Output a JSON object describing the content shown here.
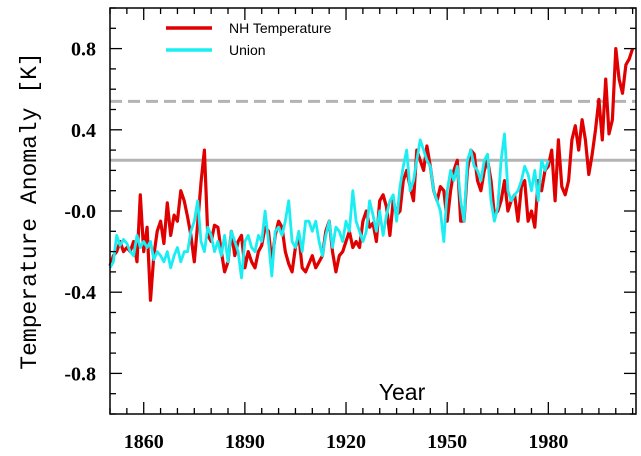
{
  "chart_data": {
    "type": "line",
    "xlabel": "Year",
    "ylabel": "Temperature Anomaly [K]",
    "xlim": [
      1850,
      2006
    ],
    "ylim": [
      -1.0,
      1.0
    ],
    "x_ticks": [
      1860,
      1890,
      1920,
      1950,
      1980
    ],
    "x_tick_labels": [
      "1860",
      "1890",
      "1920",
      "1950",
      "1980"
    ],
    "y_ticks": [
      0.8,
      0.4,
      0.0,
      -0.4,
      -0.8
    ],
    "y_tick_labels": [
      "0.8",
      "0.4",
      "-0.0",
      "-0.4",
      "-0.8"
    ],
    "grid": false,
    "legend_position": "top-left",
    "reference_lines": [
      {
        "y": 0.54,
        "style": "dashed",
        "color": "#b4b4b4"
      },
      {
        "y": 0.25,
        "style": "solid",
        "color": "#b4b4b4"
      }
    ],
    "series": [
      {
        "name": "NH Temperature",
        "color": "#e00000",
        "x": [
          1850,
          1851,
          1852,
          1853,
          1854,
          1855,
          1856,
          1857,
          1858,
          1859,
          1860,
          1861,
          1862,
          1863,
          1864,
          1865,
          1866,
          1867,
          1868,
          1869,
          1870,
          1871,
          1872,
          1873,
          1874,
          1875,
          1876,
          1877,
          1878,
          1879,
          1880,
          1881,
          1882,
          1883,
          1884,
          1885,
          1886,
          1887,
          1888,
          1889,
          1890,
          1891,
          1892,
          1893,
          1894,
          1895,
          1896,
          1897,
          1898,
          1899,
          1900,
          1901,
          1902,
          1903,
          1904,
          1905,
          1906,
          1907,
          1908,
          1909,
          1910,
          1911,
          1912,
          1913,
          1914,
          1915,
          1916,
          1917,
          1918,
          1919,
          1920,
          1921,
          1922,
          1923,
          1924,
          1925,
          1926,
          1927,
          1928,
          1929,
          1930,
          1931,
          1932,
          1933,
          1934,
          1935,
          1936,
          1937,
          1938,
          1939,
          1940,
          1941,
          1942,
          1943,
          1944,
          1945,
          1946,
          1947,
          1948,
          1949,
          1950,
          1951,
          1952,
          1953,
          1954,
          1955,
          1956,
          1957,
          1958,
          1959,
          1960,
          1961,
          1962,
          1963,
          1964,
          1965,
          1966,
          1967,
          1968,
          1969,
          1970,
          1971,
          1972,
          1973,
          1974,
          1975,
          1976,
          1977,
          1978,
          1979,
          1980,
          1981,
          1982,
          1983,
          1984,
          1985,
          1986,
          1987,
          1988,
          1989,
          1990,
          1991,
          1992,
          1993,
          1994,
          1995,
          1996,
          1997,
          1998,
          1999,
          2000,
          2001,
          2002,
          2003,
          2004,
          2005
        ],
        "values": [
          -0.27,
          -0.22,
          -0.2,
          -0.15,
          -0.2,
          -0.18,
          -0.2,
          -0.15,
          -0.25,
          0.08,
          -0.2,
          -0.08,
          -0.44,
          -0.22,
          -0.1,
          -0.05,
          -0.16,
          0.04,
          -0.12,
          -0.02,
          -0.05,
          0.1,
          0.05,
          -0.03,
          -0.12,
          -0.25,
          -0.06,
          0.14,
          0.3,
          -0.12,
          -0.15,
          -0.07,
          -0.08,
          -0.2,
          -0.3,
          -0.25,
          -0.1,
          -0.22,
          -0.15,
          -0.12,
          -0.28,
          -0.2,
          -0.25,
          -0.28,
          -0.2,
          -0.17,
          -0.08,
          -0.1,
          -0.25,
          -0.12,
          -0.05,
          -0.08,
          -0.2,
          -0.26,
          -0.3,
          -0.18,
          -0.12,
          -0.28,
          -0.3,
          -0.26,
          -0.22,
          -0.28,
          -0.25,
          -0.22,
          -0.1,
          -0.05,
          -0.2,
          -0.3,
          -0.22,
          -0.2,
          -0.15,
          -0.1,
          -0.18,
          -0.15,
          -0.18,
          -0.05,
          0.0,
          -0.08,
          -0.06,
          -0.15,
          0.05,
          0.08,
          0.02,
          -0.12,
          0.05,
          -0.02,
          0.0,
          0.15,
          0.2,
          0.12,
          0.05,
          0.3,
          0.25,
          0.2,
          0.32,
          0.22,
          0.1,
          0.05,
          0.12,
          0.1,
          -0.05,
          0.1,
          0.2,
          0.25,
          -0.05,
          -0.05,
          0.2,
          0.3,
          0.28,
          0.15,
          0.1,
          0.2,
          0.25,
          0.15,
          -0.02,
          0.0,
          0.05,
          0.15,
          0.0,
          0.05,
          0.08,
          -0.05,
          0.12,
          0.15,
          -0.05,
          0.0,
          -0.08,
          0.15,
          0.1,
          0.2,
          0.22,
          0.3,
          0.05,
          0.35,
          0.12,
          0.08,
          0.15,
          0.35,
          0.42,
          0.3,
          0.45,
          0.35,
          0.18,
          0.28,
          0.4,
          0.55,
          0.35,
          0.65,
          0.38,
          0.45,
          0.8,
          0.65,
          0.58,
          0.72,
          0.75,
          0.8
        ]
      },
      {
        "name": "Union",
        "color": "#1aeef2",
        "x": [
          1850,
          1851,
          1852,
          1853,
          1854,
          1855,
          1856,
          1857,
          1858,
          1859,
          1860,
          1861,
          1862,
          1863,
          1864,
          1865,
          1866,
          1867,
          1868,
          1869,
          1870,
          1871,
          1872,
          1873,
          1874,
          1875,
          1876,
          1877,
          1878,
          1879,
          1880,
          1881,
          1882,
          1883,
          1884,
          1885,
          1886,
          1887,
          1888,
          1889,
          1890,
          1891,
          1892,
          1893,
          1894,
          1895,
          1896,
          1897,
          1898,
          1899,
          1900,
          1901,
          1902,
          1903,
          1904,
          1905,
          1906,
          1907,
          1908,
          1909,
          1910,
          1911,
          1912,
          1913,
          1914,
          1915,
          1916,
          1917,
          1918,
          1919,
          1920,
          1921,
          1922,
          1923,
          1924,
          1925,
          1926,
          1927,
          1928,
          1929,
          1930,
          1931,
          1932,
          1933,
          1934,
          1935,
          1936,
          1937,
          1938,
          1939,
          1940,
          1941,
          1942,
          1943,
          1944,
          1945,
          1946,
          1947,
          1948,
          1949,
          1950,
          1951,
          1952,
          1953,
          1954,
          1955,
          1956,
          1957,
          1958,
          1959,
          1960,
          1961,
          1962,
          1963,
          1964,
          1965,
          1966,
          1967,
          1968,
          1969,
          1970,
          1971,
          1972,
          1973,
          1974,
          1975,
          1976,
          1977,
          1978,
          1979,
          1980
        ],
        "values": [
          -0.28,
          -0.25,
          -0.12,
          -0.17,
          -0.14,
          -0.16,
          -0.2,
          -0.22,
          -0.12,
          -0.18,
          -0.15,
          -0.18,
          -0.15,
          -0.24,
          -0.2,
          -0.22,
          -0.25,
          -0.2,
          -0.28,
          -0.22,
          -0.18,
          -0.25,
          -0.2,
          -0.2,
          -0.1,
          -0.05,
          0.05,
          -0.15,
          -0.2,
          -0.08,
          -0.12,
          -0.2,
          -0.15,
          -0.22,
          -0.12,
          -0.25,
          -0.1,
          -0.15,
          -0.2,
          -0.33,
          -0.15,
          -0.12,
          -0.18,
          -0.2,
          -0.12,
          -0.15,
          0.0,
          -0.15,
          -0.32,
          -0.1,
          -0.08,
          -0.12,
          -0.05,
          0.05,
          -0.15,
          -0.18,
          -0.1,
          -0.2,
          -0.05,
          -0.05,
          -0.1,
          -0.05,
          -0.15,
          -0.22,
          -0.12,
          -0.05,
          -0.18,
          -0.08,
          -0.1,
          -0.15,
          -0.05,
          -0.1,
          0.1,
          -0.05,
          -0.1,
          -0.15,
          -0.1,
          0.05,
          -0.02,
          -0.1,
          0.0,
          -0.12,
          -0.02,
          0.05,
          0.08,
          -0.05,
          0.12,
          0.22,
          0.3,
          0.1,
          0.15,
          0.25,
          0.35,
          0.3,
          0.25,
          0.22,
          0.1,
          0.05,
          0.0,
          -0.15,
          0.1,
          0.2,
          0.15,
          0.22,
          0.05,
          -0.05,
          0.25,
          0.3,
          0.22,
          0.2,
          0.15,
          0.25,
          0.28,
          0.05,
          -0.05,
          0.02,
          0.25,
          0.38,
          0.1,
          0.05,
          0.08,
          0.1,
          0.15,
          0.22,
          0.18,
          0.1,
          0.2,
          0.05,
          0.25,
          0.2,
          0.25
        ]
      }
    ]
  }
}
